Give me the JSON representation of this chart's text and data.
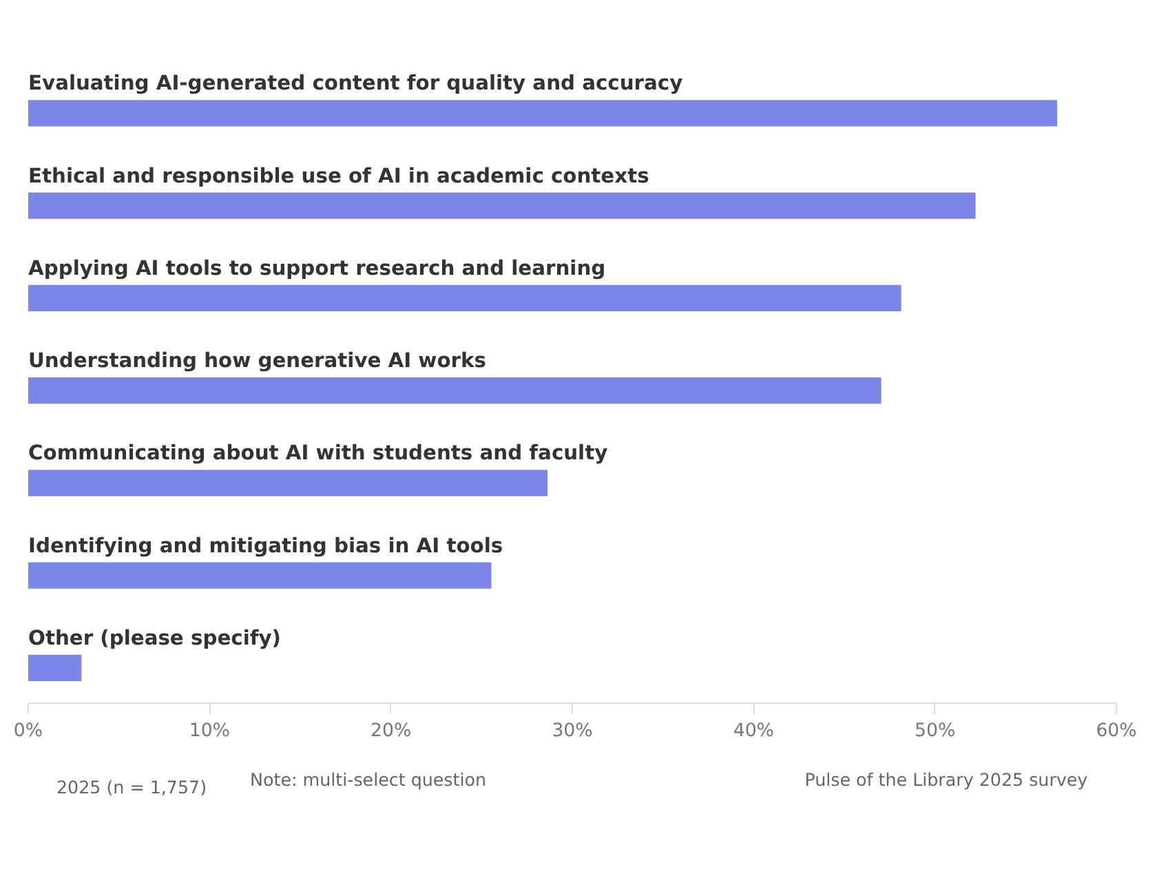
{
  "chart_data": {
    "type": "bar",
    "orientation": "horizontal",
    "categories": [
      "Evaluating AI-generated content for quality and accuracy",
      "Ethical and responsible use of AI in academic contexts",
      "Applying AI tools to support research and learning",
      "Understanding how generative AI works",
      "Communicating about AI with students and faculty",
      "Identifying and mitigating bias in AI tools",
      "Other (please specify)"
    ],
    "series": [
      {
        "name": "2025 (n = 1,757)",
        "color": "#7b86e6",
        "values": [
          56.7,
          52.2,
          48.1,
          47.0,
          28.6,
          25.5,
          2.9
        ]
      }
    ],
    "xlim": [
      0,
      60
    ],
    "xticks": [
      {
        "value": 0,
        "label": "0%"
      },
      {
        "value": 10,
        "label": "10%"
      },
      {
        "value": 20,
        "label": "20%"
      },
      {
        "value": 30,
        "label": "30%"
      },
      {
        "value": 40,
        "label": "40%"
      },
      {
        "value": 50,
        "label": "50%"
      },
      {
        "value": 60,
        "label": "60%"
      }
    ],
    "legend": "bottom left",
    "grid": false,
    "annotations": [
      "Note: multi-select question",
      "Pulse of the Library 2025 survey"
    ]
  }
}
